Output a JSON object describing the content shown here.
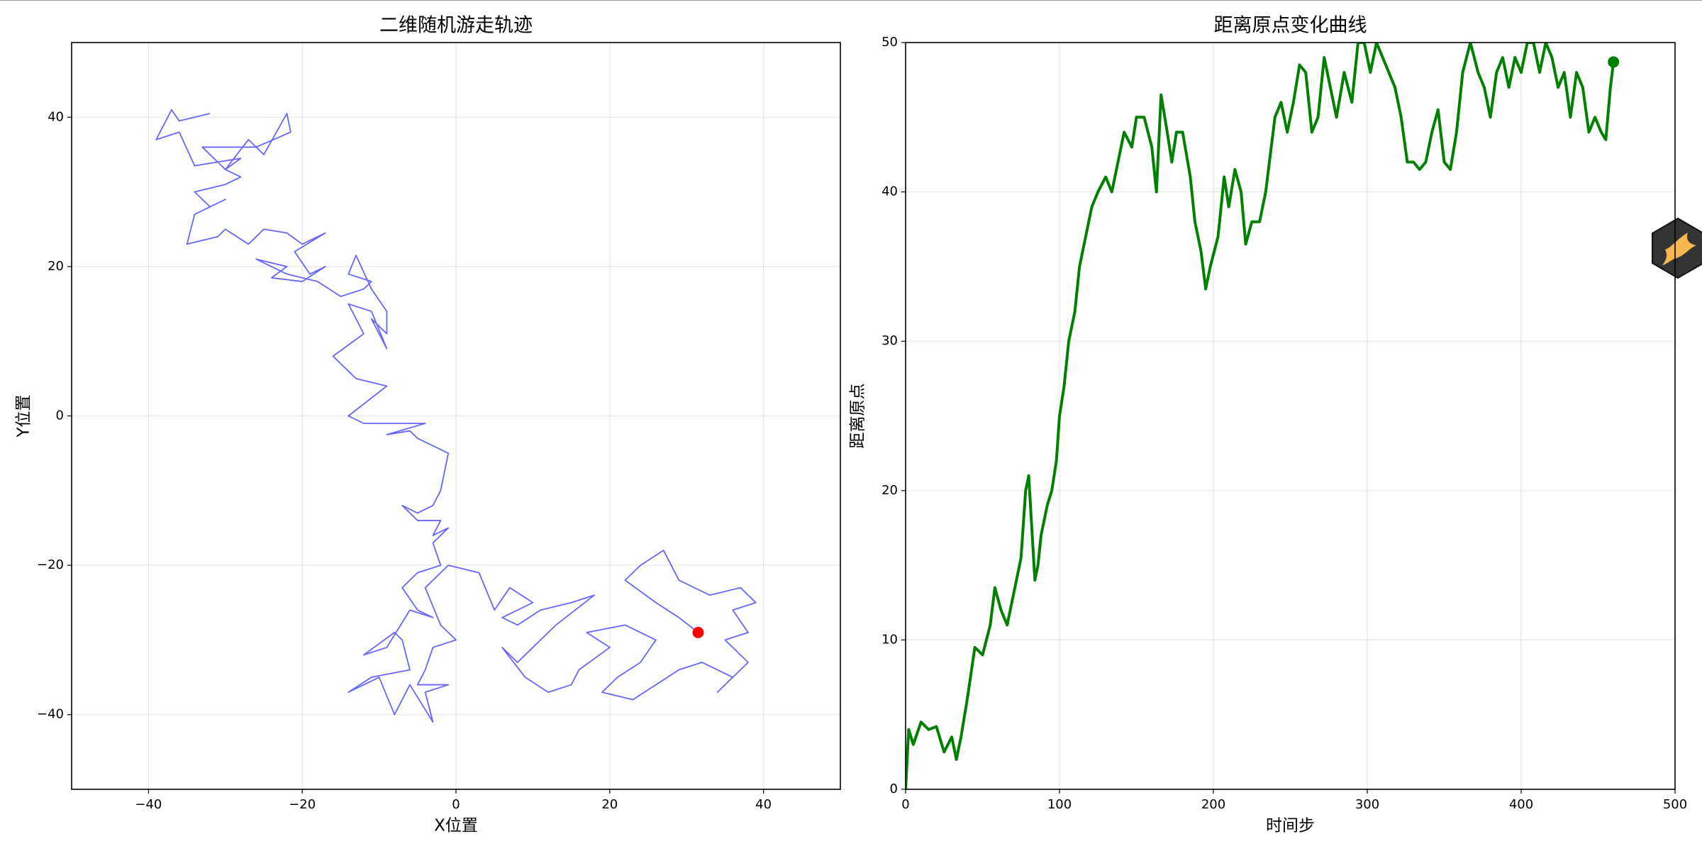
{
  "chart_data": [
    {
      "type": "line",
      "title": "二维随机游走轨迹",
      "xlabel": "X位置",
      "ylabel": "Y位置",
      "xlim": [
        -50,
        50
      ],
      "ylim": [
        -50,
        50
      ],
      "xticks": [
        {
          "value": -40,
          "label": "−40"
        },
        {
          "value": -20,
          "label": "−20"
        },
        0,
        20,
        40
      ],
      "yticks": [
        {
          "value": -40,
          "label": "−40"
        },
        {
          "value": -20,
          "label": "−20"
        },
        0,
        20,
        40
      ],
      "grid": true,
      "series": [
        {
          "color": "#0000ff",
          "alpha": 0.6,
          "linewidth": 1.8,
          "x": [
            -32,
            -36,
            -37,
            -38,
            -39,
            -36,
            -34,
            -28,
            -30,
            -27,
            -25,
            -22,
            -21.5,
            -26,
            -33,
            -30,
            -28,
            -30,
            -34,
            -32,
            -30,
            -34,
            -35,
            -31,
            -30,
            -27,
            -25,
            -22,
            -20,
            -17,
            -21,
            -19,
            -17,
            -20,
            -24,
            -22,
            -26,
            -22,
            -18,
            -15,
            -12,
            -11,
            -14,
            -13,
            -11,
            -9,
            -9,
            -11,
            -9,
            -11,
            -14,
            -12,
            -16,
            -13,
            -9,
            -14,
            -12,
            -4,
            -9,
            -6,
            -5,
            -1,
            -2,
            -3,
            -5,
            -7,
            -5,
            -2,
            -3,
            -1,
            -3,
            -2,
            -5,
            -7,
            -5,
            -3,
            -6,
            -9,
            -12,
            -8,
            -7,
            -6,
            -11,
            -14,
            -10,
            -8,
            -6,
            -3,
            -4,
            -1,
            -5,
            -4,
            -3,
            0,
            -2,
            -4,
            -1,
            3,
            5,
            7,
            10,
            6,
            8,
            11,
            15,
            18,
            13,
            10,
            8,
            6,
            9,
            12,
            15,
            16,
            20,
            17,
            22,
            26,
            24,
            21,
            19,
            23,
            26,
            29,
            32,
            36,
            34,
            38,
            35,
            38,
            36,
            39,
            37,
            33,
            29,
            27,
            24,
            22,
            26,
            29,
            31.5
          ],
          "values": [
            40.5,
            39.5,
            41,
            39,
            37,
            38,
            33.5,
            34.5,
            33,
            37,
            35,
            40.5,
            38,
            36,
            36,
            33,
            32,
            31,
            30,
            28,
            29,
            27,
            23,
            24,
            25,
            23,
            25,
            24.5,
            23,
            24.5,
            22,
            19,
            20,
            18,
            18.5,
            20,
            21,
            19,
            18,
            16,
            17,
            18,
            19,
            21.5,
            17,
            14,
            11,
            13,
            9,
            14,
            15,
            11,
            8,
            5,
            4,
            0,
            -1,
            -1,
            -2.5,
            -2,
            -3,
            -5,
            -10,
            -12,
            -13,
            -12,
            -14,
            -14,
            -16,
            -15,
            -17,
            -20,
            -21,
            -23,
            -26,
            -27,
            -26,
            -31,
            -32,
            -29,
            -30,
            -34,
            -35,
            -37,
            -35,
            -40,
            -36,
            -41,
            -37,
            -36,
            -36,
            -34,
            -31,
            -30,
            -28,
            -23,
            -20,
            -21,
            -26,
            -23,
            -25,
            -27,
            -28,
            -26,
            -25,
            -24,
            -28,
            -31,
            -33,
            -31,
            -35,
            -37,
            -36,
            -34,
            -31,
            -29,
            -28,
            -30,
            -33,
            -35,
            -37,
            -38,
            -36,
            -34,
            -33,
            -35,
            -37,
            -33,
            -30,
            -29,
            -26,
            -25,
            -23,
            -24,
            -22,
            -18,
            -20,
            -22,
            -25,
            -27,
            -29
          ]
        },
        {
          "color": "#ff0000",
          "marker": "point",
          "x": [
            31.5
          ],
          "values": [
            -29
          ]
        }
      ]
    },
    {
      "type": "line",
      "title": "距离原点变化曲线",
      "xlabel": "时间步",
      "ylabel": "距离原点",
      "xlim": [
        0,
        500
      ],
      "ylim": [
        0,
        50
      ],
      "xticks": [
        0,
        100,
        200,
        300,
        400,
        500
      ],
      "yticks": [
        0,
        10,
        20,
        30,
        40,
        50
      ],
      "grid": true,
      "series": [
        {
          "color": "#008000",
          "alpha": 1,
          "linewidth": 4,
          "x": [
            0,
            2,
            5,
            10,
            15,
            20,
            25,
            30,
            33,
            36,
            40,
            45,
            50,
            55,
            58,
            62,
            66,
            70,
            75,
            78,
            80,
            84,
            86,
            88,
            92,
            95,
            98,
            100,
            103,
            106,
            110,
            113,
            117,
            121,
            125,
            130,
            134,
            138,
            142,
            147,
            150,
            155,
            160,
            163,
            166,
            170,
            173,
            176,
            180,
            185,
            188,
            192,
            195,
            198,
            203,
            207,
            210,
            214,
            218,
            221,
            225,
            230,
            234,
            240,
            244,
            248,
            252,
            256,
            260,
            264,
            268,
            272,
            276,
            280,
            285,
            290,
            294,
            298,
            302,
            306,
            310,
            314,
            318,
            322,
            326,
            330,
            334,
            338,
            342,
            346,
            350,
            354,
            358,
            362,
            367,
            372,
            376,
            380,
            384,
            388,
            392,
            396,
            400,
            404,
            408,
            412,
            416,
            420,
            424,
            428,
            432,
            436,
            440,
            444,
            448,
            452,
            455,
            458,
            460
          ],
          "values": [
            0,
            4,
            3,
            4.5,
            4,
            4.2,
            2.5,
            3.5,
            2,
            3.5,
            6,
            9.5,
            9,
            11,
            13.5,
            12,
            11,
            13,
            15.5,
            20,
            21,
            14,
            15,
            17,
            19,
            20,
            22,
            25,
            27,
            30,
            32,
            35,
            37,
            39,
            40,
            41,
            40,
            42,
            44,
            43,
            45,
            45,
            43,
            40,
            46.5,
            44,
            42,
            44,
            44,
            41,
            38,
            36,
            33.5,
            35,
            37,
            41,
            39,
            41.5,
            40,
            36.5,
            38,
            38,
            40,
            45,
            46,
            44,
            46,
            48.5,
            48,
            44,
            45,
            49,
            47,
            45,
            48,
            46,
            50,
            50,
            48,
            50,
            49,
            48,
            47,
            45,
            42,
            42,
            41.5,
            42,
            44,
            45.5,
            42,
            41.5,
            44,
            48,
            50,
            48,
            47,
            45,
            48,
            49,
            47,
            49,
            48,
            50,
            50,
            48,
            50,
            49,
            47,
            48,
            45,
            48,
            47,
            44,
            45,
            44,
            43.5,
            47,
            48.7
          ]
        },
        {
          "color": "#008000",
          "marker": "point",
          "x": [
            460
          ],
          "values": [
            48.7
          ]
        }
      ]
    }
  ]
}
